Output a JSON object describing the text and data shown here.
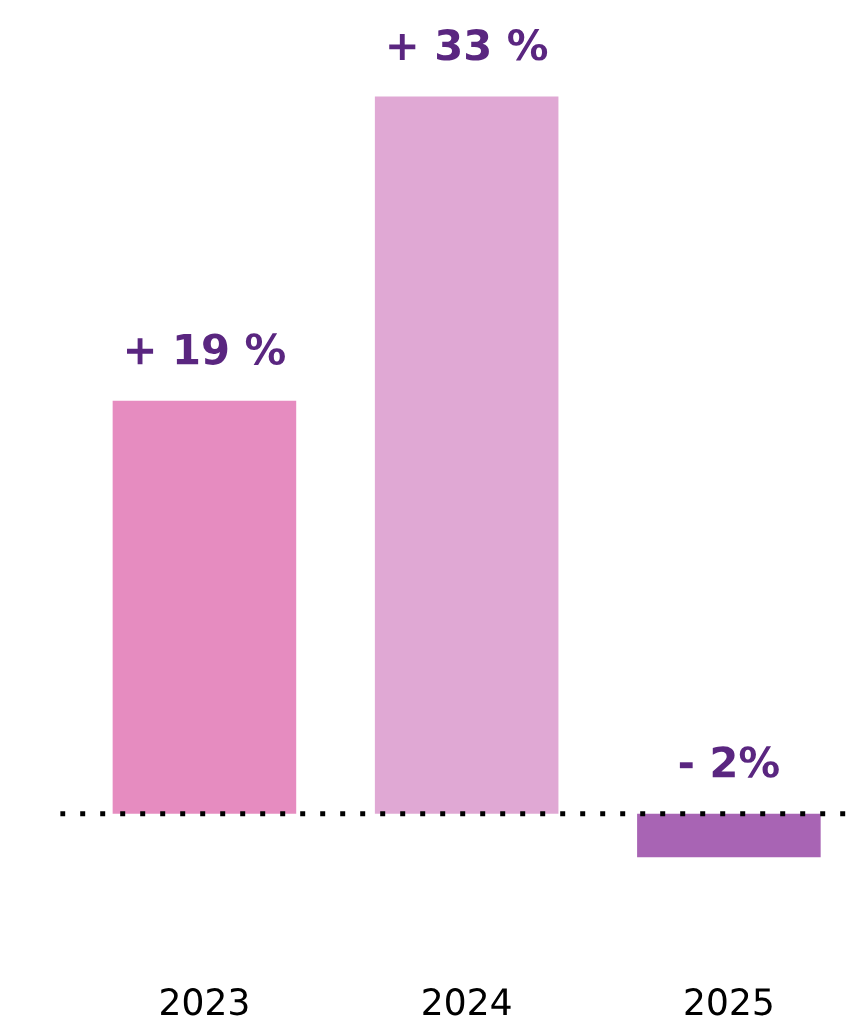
{
  "chart_data": {
    "type": "bar",
    "categories": [
      "2023",
      "2024",
      "2025"
    ],
    "values": [
      19,
      33,
      -2
    ],
    "value_labels": [
      "+ 19 %",
      "+ 33 %",
      "- 2%"
    ],
    "colors": [
      "#e68cc0",
      "#e0a8d4",
      "#a864b4"
    ],
    "ref_lines": [
      {
        "axis": "y",
        "value": 0,
        "color": "#000000",
        "line_style": "dotted"
      }
    ],
    "grid": false,
    "legend": false
  }
}
